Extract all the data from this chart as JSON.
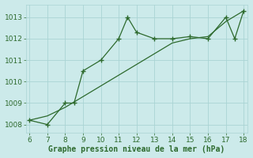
{
  "x_jagged": [
    6,
    7,
    8,
    8.5,
    9,
    10,
    11,
    11.5,
    12,
    13,
    14,
    15,
    16,
    17,
    17.5,
    18
  ],
  "y_jagged": [
    1008.2,
    1008.0,
    1009.0,
    1009.0,
    1010.5,
    1011.0,
    1012.0,
    1013.0,
    1012.3,
    1012.0,
    1012.0,
    1012.1,
    1012.0,
    1013.0,
    1012.0,
    1013.3
  ],
  "x_trend": [
    6,
    7,
    8,
    9,
    10,
    11,
    12,
    13,
    14,
    15,
    16,
    17,
    18
  ],
  "y_trend": [
    1008.2,
    1008.4,
    1008.8,
    1009.3,
    1009.8,
    1010.3,
    1010.8,
    1011.3,
    1011.8,
    1012.0,
    1012.1,
    1012.8,
    1013.3
  ],
  "line_color": "#2d6a2d",
  "bg_color": "#cceaea",
  "grid_color": "#aad4d4",
  "xlabel": "Graphe pression niveau de la mer (hPa)",
  "xlim": [
    5.8,
    18.2
  ],
  "ylim": [
    1007.6,
    1013.6
  ],
  "yticks": [
    1008,
    1009,
    1010,
    1011,
    1012,
    1013
  ],
  "xticks": [
    6,
    7,
    8,
    9,
    10,
    11,
    12,
    13,
    14,
    15,
    16,
    17,
    18
  ],
  "title_fontsize": 7,
  "tick_fontsize": 6.5
}
